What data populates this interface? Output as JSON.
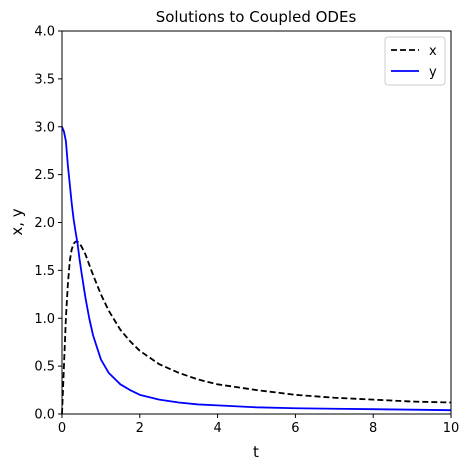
{
  "chart_data": {
    "type": "line",
    "title": "Solutions to Coupled ODEs",
    "xlabel": "t",
    "ylabel": "x, y",
    "xlim": [
      0,
      10
    ],
    "ylim": [
      0,
      4
    ],
    "xticks": [
      0,
      2,
      4,
      6,
      8,
      10
    ],
    "yticks": [
      0.0,
      0.5,
      1.0,
      1.5,
      2.0,
      2.5,
      3.0,
      3.5,
      4.0
    ],
    "grid": false,
    "legend_position": "top-right",
    "series": [
      {
        "name": "x",
        "color": "#000000",
        "style": "dashed",
        "x": [
          0,
          0.05,
          0.1,
          0.15,
          0.2,
          0.25,
          0.3,
          0.35,
          0.4,
          0.45,
          0.5,
          0.6,
          0.7,
          0.8,
          1.0,
          1.2,
          1.5,
          1.75,
          2.0,
          2.5,
          3.0,
          3.5,
          4.0,
          5.0,
          6.0,
          7.0,
          8.0,
          9.0,
          10.0
        ],
        "values": [
          0.0,
          0.5,
          1.0,
          1.35,
          1.6,
          1.72,
          1.78,
          1.8,
          1.8,
          1.78,
          1.75,
          1.67,
          1.56,
          1.45,
          1.25,
          1.08,
          0.88,
          0.76,
          0.66,
          0.52,
          0.43,
          0.36,
          0.31,
          0.25,
          0.2,
          0.17,
          0.15,
          0.13,
          0.12
        ]
      },
      {
        "name": "y",
        "color": "#0000ff",
        "style": "solid",
        "x": [
          0,
          0.05,
          0.1,
          0.15,
          0.2,
          0.25,
          0.3,
          0.35,
          0.4,
          0.45,
          0.5,
          0.6,
          0.7,
          0.8,
          1.0,
          1.2,
          1.5,
          1.75,
          2.0,
          2.5,
          3.0,
          3.5,
          4.0,
          5.0,
          6.0,
          7.0,
          8.0,
          9.0,
          10.0
        ],
        "values": [
          3.0,
          2.95,
          2.85,
          2.6,
          2.4,
          2.2,
          2.03,
          1.9,
          1.78,
          1.62,
          1.48,
          1.22,
          1.0,
          0.82,
          0.57,
          0.43,
          0.31,
          0.25,
          0.2,
          0.15,
          0.12,
          0.1,
          0.09,
          0.07,
          0.06,
          0.055,
          0.05,
          0.045,
          0.04
        ]
      }
    ]
  }
}
